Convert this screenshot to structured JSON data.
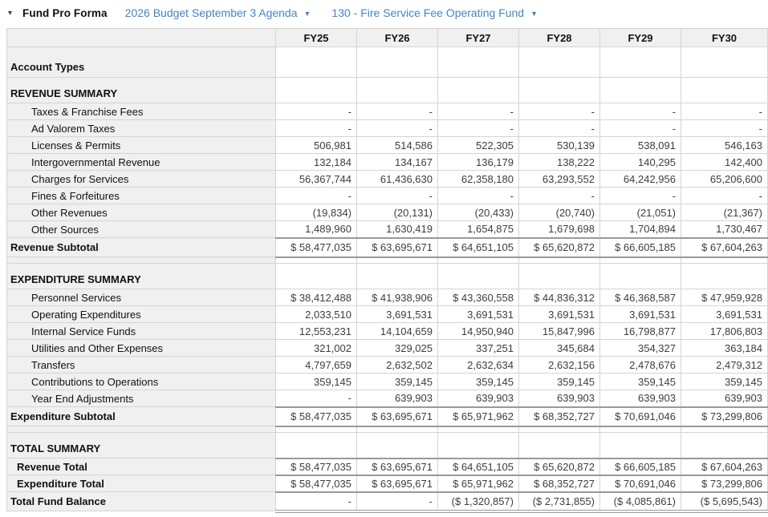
{
  "topbar": {
    "title": "Fund Pro Forma",
    "budget_dropdown": "2026 Budget September 3 Agenda",
    "fund_dropdown": "130 - Fire Service Fee Operating Fund",
    "icons": {
      "collapse_caret": "▾",
      "dropdown_caret": "▼"
    },
    "accent_color": "#4584c4"
  },
  "table": {
    "columns": [
      "FY25",
      "FY26",
      "FY27",
      "FY28",
      "FY29",
      "FY30"
    ],
    "rows": [
      {
        "type": "group",
        "label": "Account Types",
        "values": [
          "",
          "",
          "",
          "",
          "",
          ""
        ]
      },
      {
        "type": "section",
        "label": "REVENUE SUMMARY",
        "values": [
          "",
          "",
          "",
          "",
          "",
          ""
        ]
      },
      {
        "type": "detail",
        "label": "Taxes & Franchise Fees",
        "values": [
          "-",
          "-",
          "-",
          "-",
          "-",
          "-"
        ]
      },
      {
        "type": "detail",
        "label": "Ad Valorem Taxes",
        "values": [
          "-",
          "-",
          "-",
          "-",
          "-",
          "-"
        ]
      },
      {
        "type": "detail",
        "label": "Licenses & Permits",
        "values": [
          "506,981",
          "514,586",
          "522,305",
          "530,139",
          "538,091",
          "546,163"
        ]
      },
      {
        "type": "detail",
        "label": "Intergovernmental Revenue",
        "values": [
          "132,184",
          "134,167",
          "136,179",
          "138,222",
          "140,295",
          "142,400"
        ]
      },
      {
        "type": "detail",
        "label": "Charges for Services",
        "values": [
          "56,367,744",
          "61,436,630",
          "62,358,180",
          "63,293,552",
          "64,242,956",
          "65,206,600"
        ]
      },
      {
        "type": "detail",
        "label": "Fines & Forfeitures",
        "values": [
          "-",
          "-",
          "-",
          "-",
          "-",
          "-"
        ]
      },
      {
        "type": "detail",
        "label": "Other Revenues",
        "values": [
          "(19,834)",
          "(20,131)",
          "(20,433)",
          "(20,740)",
          "(21,051)",
          "(21,367)"
        ]
      },
      {
        "type": "detail",
        "label": "Other Sources",
        "values": [
          "1,489,960",
          "1,630,419",
          "1,654,875",
          "1,679,698",
          "1,704,894",
          "1,730,467"
        ]
      },
      {
        "type": "subtotal",
        "label": "Revenue Subtotal",
        "values": [
          "$ 58,477,035",
          "$ 63,695,671",
          "$ 64,651,105",
          "$ 65,620,872",
          "$ 66,605,185",
          "$ 67,604,263"
        ]
      },
      {
        "type": "spacer",
        "label": "",
        "values": [
          "",
          "",
          "",
          "",
          "",
          ""
        ]
      },
      {
        "type": "section",
        "label": "EXPENDITURE SUMMARY",
        "values": [
          "",
          "",
          "",
          "",
          "",
          ""
        ]
      },
      {
        "type": "detail",
        "label": "Personnel Services",
        "values": [
          "$ 38,412,488",
          "$ 41,938,906",
          "$ 43,360,558",
          "$ 44,836,312",
          "$ 46,368,587",
          "$ 47,959,928"
        ]
      },
      {
        "type": "detail",
        "label": "Operating Expenditures",
        "values": [
          "2,033,510",
          "3,691,531",
          "3,691,531",
          "3,691,531",
          "3,691,531",
          "3,691,531"
        ]
      },
      {
        "type": "detail",
        "label": "Internal Service Funds",
        "values": [
          "12,553,231",
          "14,104,659",
          "14,950,940",
          "15,847,996",
          "16,798,877",
          "17,806,803"
        ]
      },
      {
        "type": "detail",
        "label": "Utilities and Other Expenses",
        "values": [
          "321,002",
          "329,025",
          "337,251",
          "345,684",
          "354,327",
          "363,184"
        ]
      },
      {
        "type": "detail",
        "label": "Transfers",
        "values": [
          "4,797,659",
          "2,632,502",
          "2,632,634",
          "2,632,156",
          "2,478,676",
          "2,479,312"
        ]
      },
      {
        "type": "detail",
        "label": "Contributions to Operations",
        "values": [
          "359,145",
          "359,145",
          "359,145",
          "359,145",
          "359,145",
          "359,145"
        ]
      },
      {
        "type": "detail",
        "label": "Year End Adjustments",
        "values": [
          "-",
          "639,903",
          "639,903",
          "639,903",
          "639,903",
          "639,903"
        ]
      },
      {
        "type": "subtotal",
        "label": "Expenditure Subtotal",
        "values": [
          "$ 58,477,035",
          "$ 63,695,671",
          "$ 65,971,962",
          "$ 68,352,727",
          "$ 70,691,046",
          "$ 73,299,806"
        ]
      },
      {
        "type": "spacer",
        "label": "",
        "values": [
          "",
          "",
          "",
          "",
          "",
          ""
        ]
      },
      {
        "type": "section",
        "label": "TOTAL SUMMARY",
        "values": [
          "",
          "",
          "",
          "",
          "",
          ""
        ]
      },
      {
        "type": "total",
        "label": "Revenue Total",
        "values": [
          "$ 58,477,035",
          "$ 63,695,671",
          "$ 64,651,105",
          "$ 65,620,872",
          "$ 66,605,185",
          "$ 67,604,263"
        ]
      },
      {
        "type": "total",
        "label": "Expenditure Total",
        "values": [
          "$ 58,477,035",
          "$ 63,695,671",
          "$ 65,971,962",
          "$ 68,352,727",
          "$ 70,691,046",
          "$ 73,299,806"
        ]
      },
      {
        "type": "grand",
        "label": "Total Fund Balance",
        "values": [
          "-",
          "-",
          "($ 1,320,857)",
          "($ 2,731,855)",
          "($ 4,085,861)",
          "($ 5,695,543)"
        ]
      }
    ]
  }
}
